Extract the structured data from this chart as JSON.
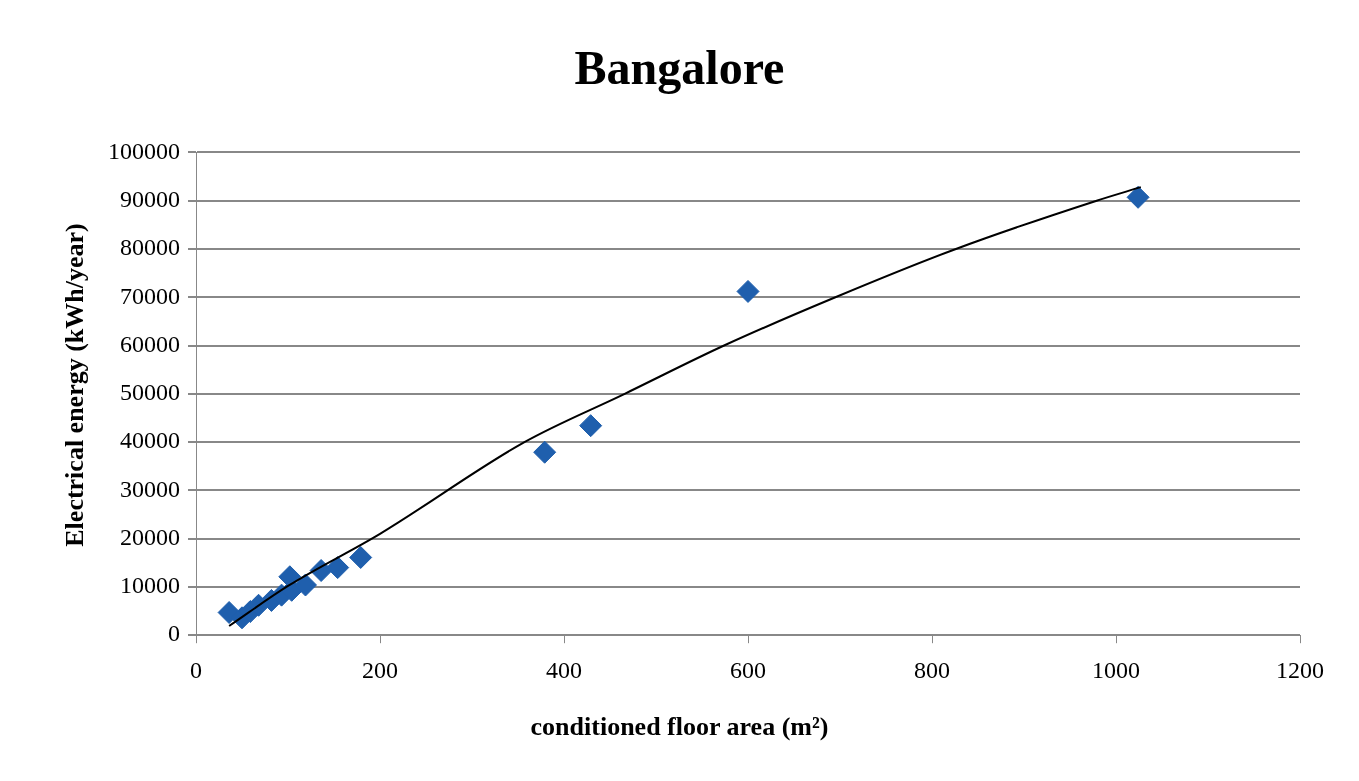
{
  "chart_data": {
    "type": "scatter",
    "title": "Bangalore",
    "xlabel": "conditioned floor area (m²)",
    "ylabel": "Electrical energy (kWh/year)",
    "series": [
      {
        "color": "#1f5fad",
        "marker": "diamond",
        "x": [
          36,
          50,
          59,
          68,
          82,
          93,
          102,
          104,
          119,
          136,
          154,
          179,
          379,
          429,
          600,
          1024
        ],
        "values": [
          4700,
          3600,
          4900,
          6200,
          7200,
          8300,
          12100,
          9300,
          10400,
          13400,
          14000,
          16100,
          37900,
          43400,
          71200,
          90700
        ]
      },
      {
        "type": "line",
        "color": "#000000",
        "marker": "none",
        "x": [
          36,
          100,
          200,
          357,
          466,
          574,
          695,
          826,
          979,
          1027
        ],
        "values": [
          1900,
          10200,
          21000,
          40000,
          50000,
          60000,
          70000,
          80000,
          90000,
          92800
        ]
      }
    ],
    "xlim": [
      0,
      1200
    ],
    "xticks": [
      0,
      200,
      400,
      600,
      800,
      1000,
      1200
    ],
    "ylim": [
      0,
      100000
    ],
    "yticks": [
      0,
      10000,
      20000,
      30000,
      40000,
      50000,
      60000,
      70000,
      80000,
      90000,
      100000
    ],
    "grid": "y",
    "legend": false
  }
}
